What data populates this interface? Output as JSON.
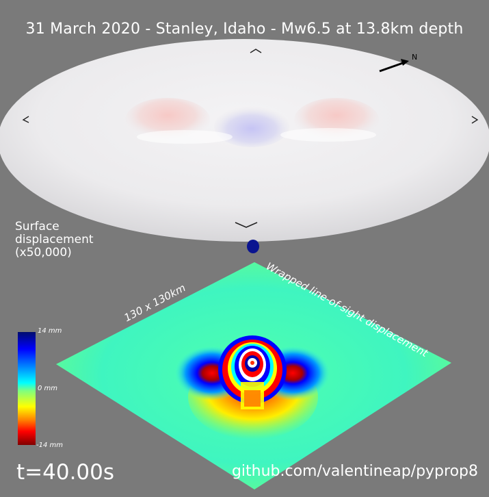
{
  "title": "31 March 2020 - Stanley, Idaho - Mw6.5 at 13.8km depth",
  "surface_label": "Surface displacement (x50,000)",
  "map_size_label": "130 x 130km",
  "insar_label": "Wrapped line-of-sight displacement",
  "north_label": "N",
  "colorbar": {
    "max": "14 mm",
    "mid": "0 mm",
    "min": "-14 mm"
  },
  "time": "t=40.00s",
  "credit": "github.com/valentineap/pyprop8",
  "colors": {
    "background": "#7a7a7a",
    "text": "#ffffff"
  }
}
